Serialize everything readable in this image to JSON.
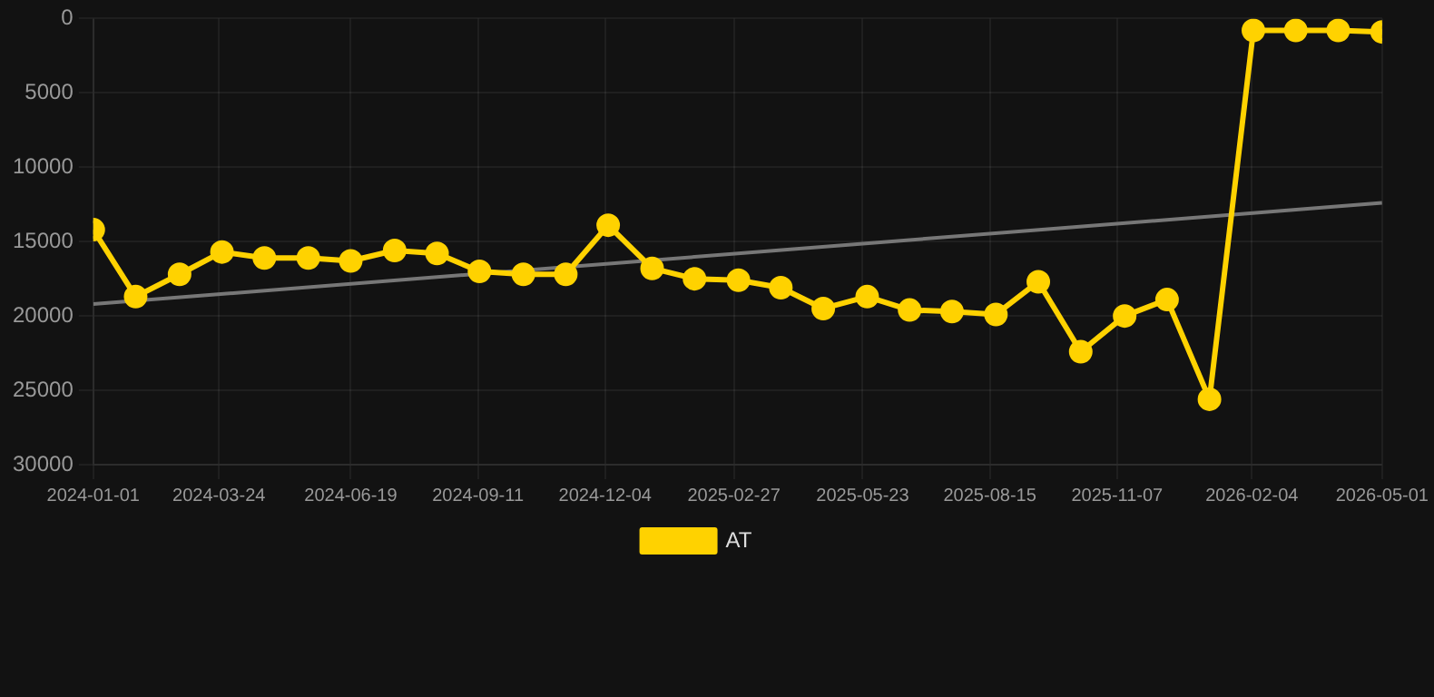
{
  "chart_data": {
    "type": "line",
    "x": [
      "2024-01-01",
      "2024-01-29",
      "2024-02-27",
      "2024-03-26",
      "2024-04-23",
      "2024-05-22",
      "2024-06-19",
      "2024-07-18",
      "2024-08-15",
      "2024-09-12",
      "2024-10-11",
      "2024-11-08",
      "2024-12-06",
      "2025-01-04",
      "2025-02-01",
      "2025-03-02",
      "2025-03-30",
      "2025-04-27",
      "2025-05-26",
      "2025-06-23",
      "2025-07-21",
      "2025-08-19",
      "2025-09-16",
      "2025-10-14",
      "2025-11-12",
      "2025-12-10",
      "2026-01-07",
      "2026-02-05",
      "2026-03-05",
      "2026-04-02",
      "2026-05-01"
    ],
    "series": [
      {
        "name": "AT",
        "color": "#ffd200",
        "marker": "circle",
        "values": [
          14200,
          18700,
          17200,
          15700,
          16100,
          16100,
          16300,
          15600,
          15800,
          17000,
          17200,
          17200,
          13900,
          16800,
          17500,
          17600,
          18100,
          19500,
          18700,
          19600,
          19700,
          19900,
          17700,
          22400,
          20000,
          18900,
          25600,
          800,
          800,
          800,
          900
        ]
      },
      {
        "type": "line",
        "color": "#777777",
        "marker": "none",
        "x": [
          "2024-01-01",
          "2026-05-01"
        ],
        "values": [
          19200,
          12400
        ]
      }
    ],
    "xlim": [
      "2024-01-01",
      "2026-05-01"
    ],
    "xticks": [
      "2024-01-01",
      "2024-03-24",
      "2024-06-19",
      "2024-09-11",
      "2024-12-04",
      "2025-02-27",
      "2025-05-23",
      "2025-08-15",
      "2025-11-07",
      "2026-02-04",
      "2026-05-01"
    ],
    "ylim": [
      30000,
      0
    ],
    "yticks": [
      0,
      5000,
      10000,
      15000,
      20000,
      25000,
      30000
    ],
    "grid": true,
    "legend": "bottom"
  }
}
